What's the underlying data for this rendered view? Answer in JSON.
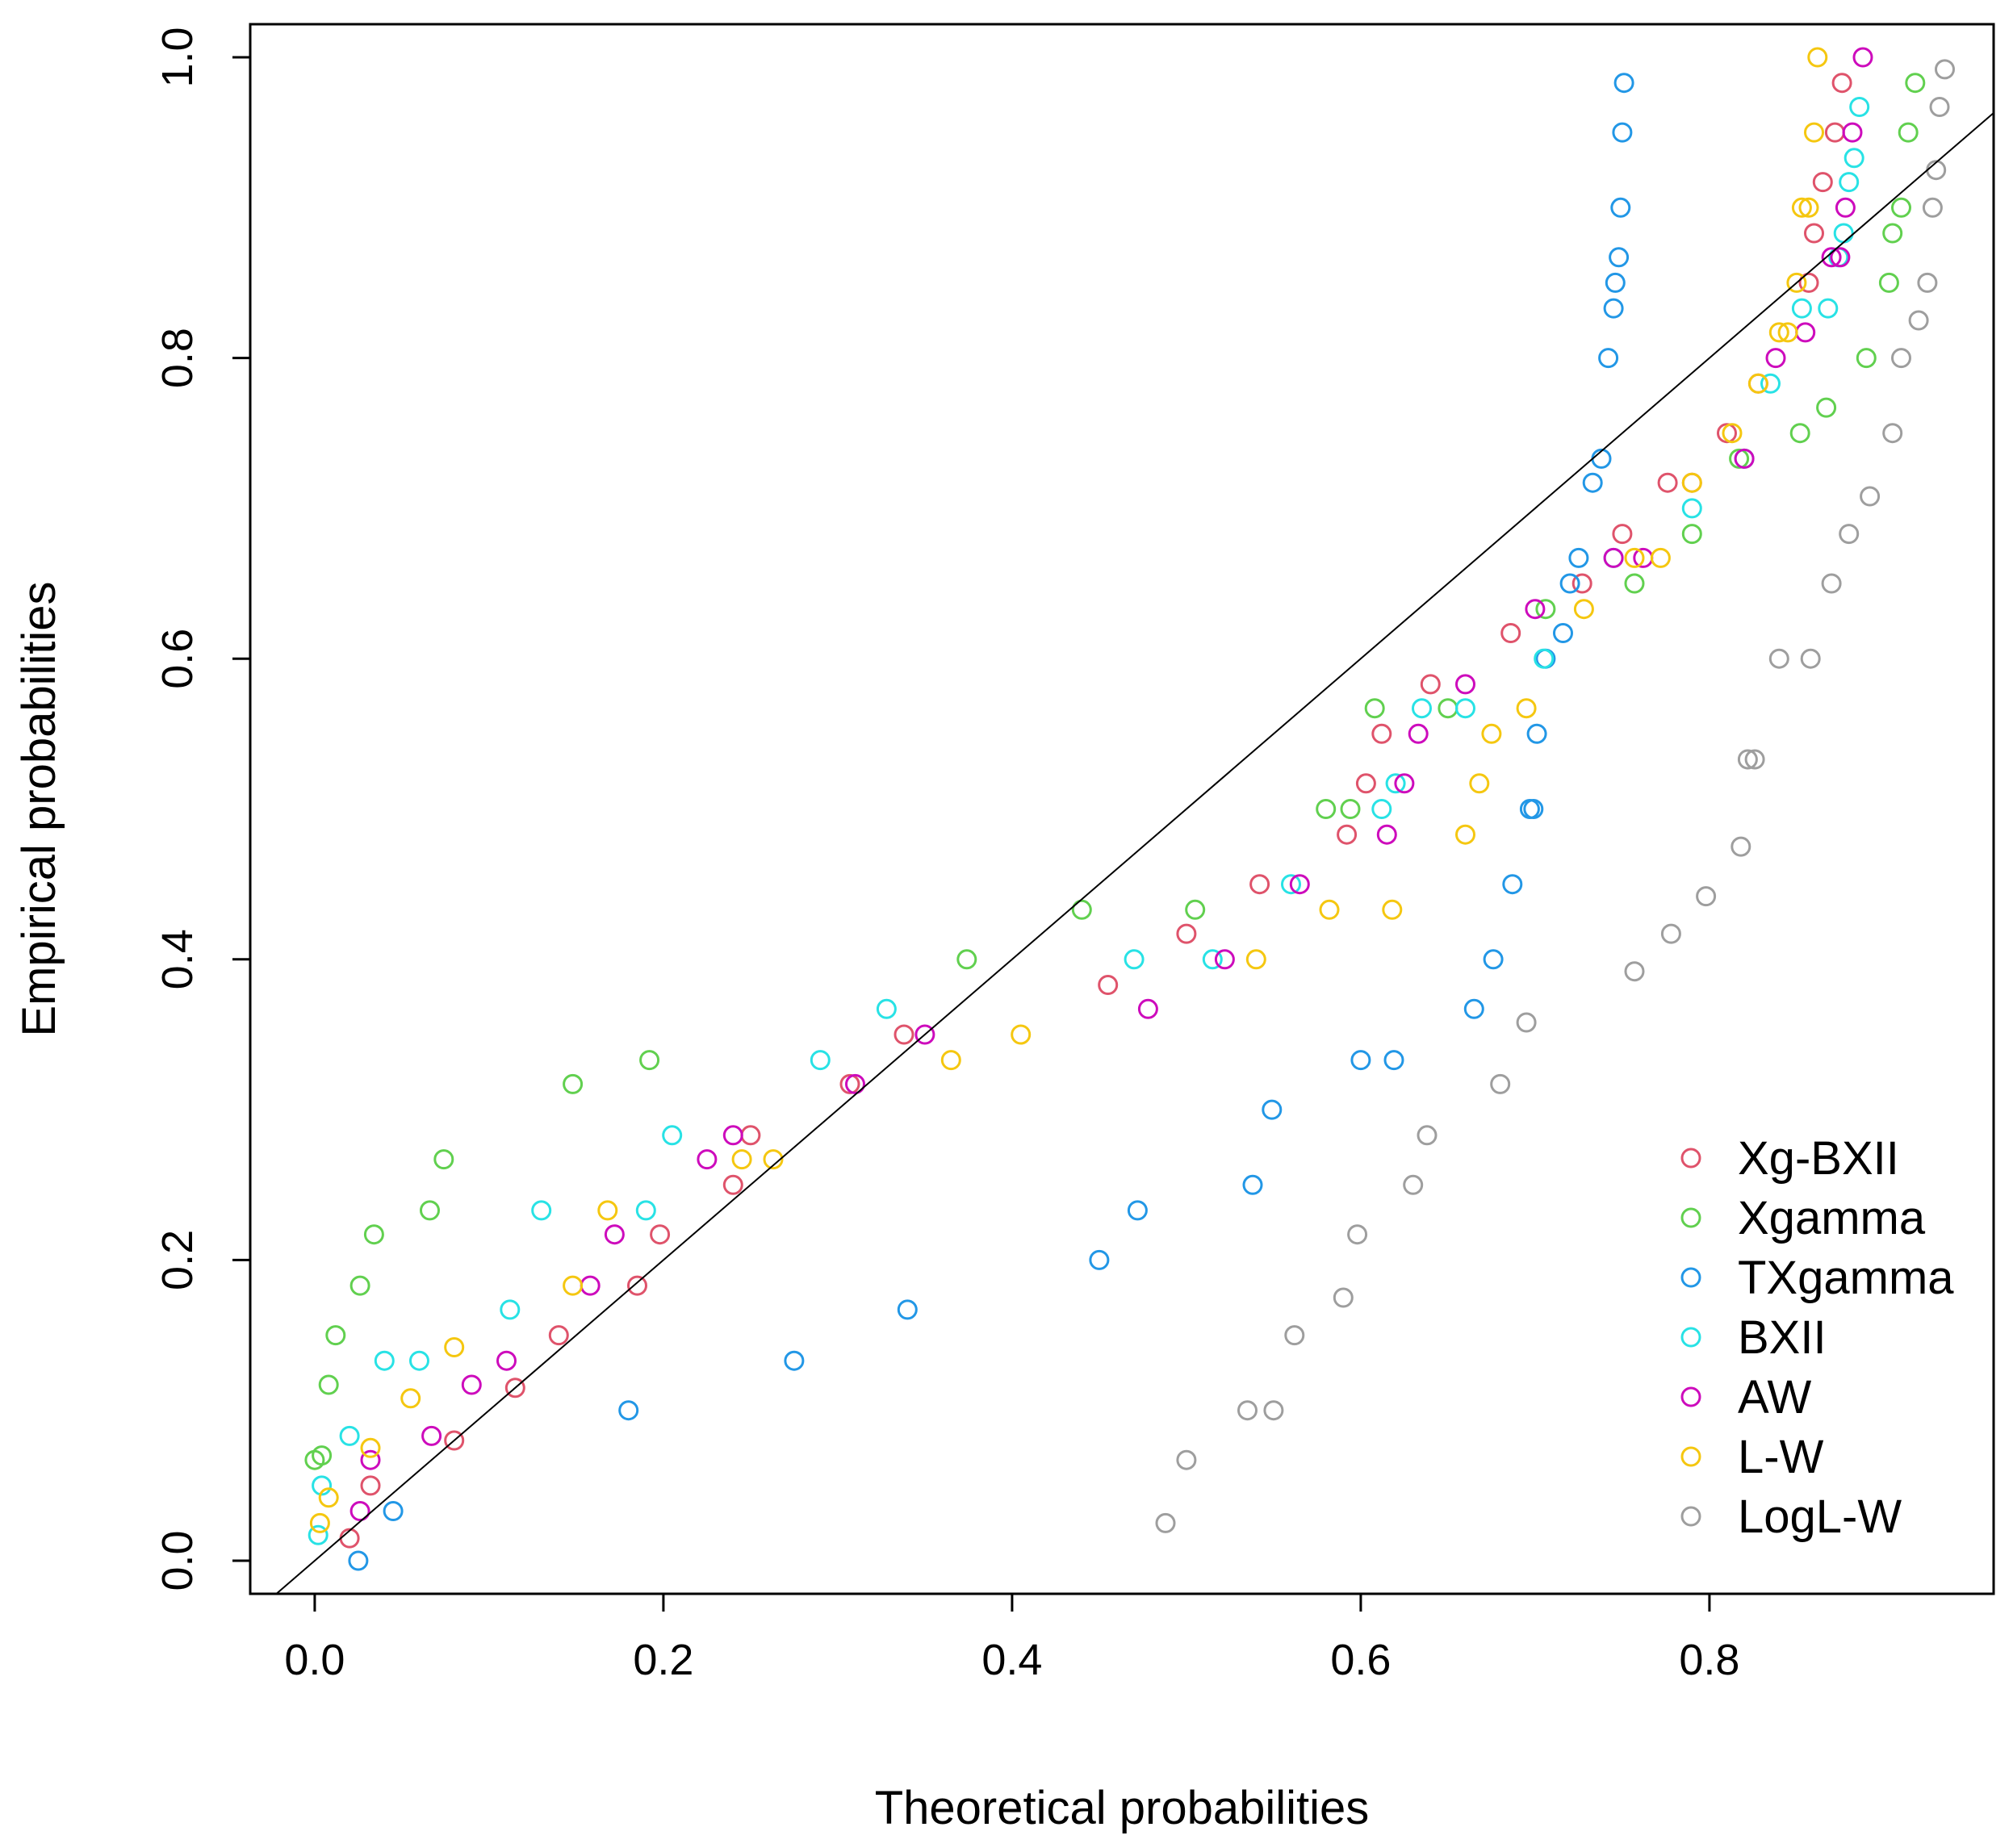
{
  "chart_data": {
    "type": "scatter",
    "title": "",
    "xlabel": "Theoretical probabilities",
    "ylabel": "Empirical probabilities",
    "xlim": [
      -0.037,
      0.963
    ],
    "ylim": [
      -0.022,
      1.022
    ],
    "xticks": [
      0.0,
      0.2,
      0.4,
      0.6,
      0.8
    ],
    "xtick_labels": [
      "0.0",
      "0.2",
      "0.4",
      "0.6",
      "0.8"
    ],
    "yticks": [
      0.0,
      0.2,
      0.4,
      0.6,
      0.8,
      1.0
    ],
    "ytick_labels": [
      "0.0",
      "0.2",
      "0.4",
      "0.6",
      "0.8",
      "1.0"
    ],
    "grid": false,
    "legend_position": "bottom-right",
    "reference_line": {
      "description": "identity line y = x",
      "x": [
        -0.04,
        0.97
      ],
      "y": [
        -0.04,
        0.97
      ],
      "color": "#000000"
    },
    "series": [
      {
        "name": "Xg-BXII",
        "color": "#DF536B",
        "points": [
          [
            0.02,
            0.015
          ],
          [
            0.032,
            0.05
          ],
          [
            0.08,
            0.08
          ],
          [
            0.115,
            0.115
          ],
          [
            0.14,
            0.15
          ],
          [
            0.185,
            0.183
          ],
          [
            0.198,
            0.217
          ],
          [
            0.24,
            0.25
          ],
          [
            0.25,
            0.283
          ],
          [
            0.307,
            0.317
          ],
          [
            0.338,
            0.35
          ],
          [
            0.455,
            0.383
          ],
          [
            0.5,
            0.417
          ],
          [
            0.542,
            0.45
          ],
          [
            0.592,
            0.483
          ],
          [
            0.603,
            0.517
          ],
          [
            0.612,
            0.55
          ],
          [
            0.64,
            0.583
          ],
          [
            0.686,
            0.617
          ],
          [
            0.727,
            0.65
          ],
          [
            0.75,
            0.683
          ],
          [
            0.776,
            0.717
          ],
          [
            0.79,
            0.717
          ],
          [
            0.81,
            0.75
          ],
          [
            0.828,
            0.783
          ],
          [
            0.857,
            0.85
          ],
          [
            0.86,
            0.883
          ],
          [
            0.865,
            0.917
          ],
          [
            0.872,
            0.95
          ],
          [
            0.876,
            0.983
          ]
        ]
      },
      {
        "name": "Xgamma",
        "color": "#61D04F",
        "points": [
          [
            0.0,
            0.067
          ],
          [
            0.004,
            0.07
          ],
          [
            0.008,
            0.117
          ],
          [
            0.012,
            0.15
          ],
          [
            0.026,
            0.183
          ],
          [
            0.034,
            0.217
          ],
          [
            0.066,
            0.233
          ],
          [
            0.074,
            0.267
          ],
          [
            0.148,
            0.317
          ],
          [
            0.192,
            0.333
          ],
          [
            0.374,
            0.4
          ],
          [
            0.44,
            0.433
          ],
          [
            0.505,
            0.433
          ],
          [
            0.58,
            0.5
          ],
          [
            0.594,
            0.5
          ],
          [
            0.608,
            0.567
          ],
          [
            0.65,
            0.567
          ],
          [
            0.706,
            0.633
          ],
          [
            0.757,
            0.65
          ],
          [
            0.79,
            0.683
          ],
          [
            0.817,
            0.733
          ],
          [
            0.852,
            0.75
          ],
          [
            0.867,
            0.767
          ],
          [
            0.89,
            0.8
          ],
          [
            0.903,
            0.85
          ],
          [
            0.905,
            0.883
          ],
          [
            0.91,
            0.9
          ],
          [
            0.914,
            0.95
          ],
          [
            0.918,
            0.983
          ]
        ]
      },
      {
        "name": "TXgamma",
        "color": "#2297E6",
        "points": [
          [
            0.025,
            0.0
          ],
          [
            0.045,
            0.033
          ],
          [
            0.18,
            0.1
          ],
          [
            0.275,
            0.133
          ],
          [
            0.34,
            0.167
          ],
          [
            0.45,
            0.2
          ],
          [
            0.472,
            0.233
          ],
          [
            0.538,
            0.25
          ],
          [
            0.549,
            0.3
          ],
          [
            0.6,
            0.333
          ],
          [
            0.619,
            0.333
          ],
          [
            0.665,
            0.367
          ],
          [
            0.676,
            0.4
          ],
          [
            0.687,
            0.45
          ],
          [
            0.697,
            0.5
          ],
          [
            0.699,
            0.5
          ],
          [
            0.701,
            0.55
          ],
          [
            0.706,
            0.6
          ],
          [
            0.716,
            0.617
          ],
          [
            0.72,
            0.65
          ],
          [
            0.725,
            0.667
          ],
          [
            0.733,
            0.717
          ],
          [
            0.738,
            0.733
          ],
          [
            0.742,
            0.8
          ],
          [
            0.745,
            0.833
          ],
          [
            0.746,
            0.85
          ],
          [
            0.748,
            0.867
          ],
          [
            0.749,
            0.9
          ],
          [
            0.75,
            0.95
          ],
          [
            0.751,
            0.983
          ]
        ]
      },
      {
        "name": "BXII",
        "color": "#28E2E5",
        "points": [
          [
            0.002,
            0.017
          ],
          [
            0.004,
            0.05
          ],
          [
            0.02,
            0.083
          ],
          [
            0.04,
            0.133
          ],
          [
            0.06,
            0.133
          ],
          [
            0.112,
            0.167
          ],
          [
            0.13,
            0.233
          ],
          [
            0.19,
            0.233
          ],
          [
            0.205,
            0.283
          ],
          [
            0.29,
            0.333
          ],
          [
            0.328,
            0.367
          ],
          [
            0.47,
            0.4
          ],
          [
            0.515,
            0.4
          ],
          [
            0.56,
            0.45
          ],
          [
            0.612,
            0.5
          ],
          [
            0.62,
            0.517
          ],
          [
            0.635,
            0.567
          ],
          [
            0.66,
            0.567
          ],
          [
            0.705,
            0.6
          ],
          [
            0.745,
            0.667
          ],
          [
            0.79,
            0.7
          ],
          [
            0.82,
            0.733
          ],
          [
            0.835,
            0.783
          ],
          [
            0.853,
            0.833
          ],
          [
            0.868,
            0.833
          ],
          [
            0.874,
            0.867
          ],
          [
            0.877,
            0.883
          ],
          [
            0.88,
            0.917
          ],
          [
            0.883,
            0.933
          ],
          [
            0.886,
            0.967
          ]
        ]
      },
      {
        "name": "AW",
        "color": "#CD0BBC",
        "points": [
          [
            0.026,
            0.033
          ],
          [
            0.032,
            0.067
          ],
          [
            0.067,
            0.083
          ],
          [
            0.09,
            0.117
          ],
          [
            0.11,
            0.133
          ],
          [
            0.158,
            0.183
          ],
          [
            0.172,
            0.217
          ],
          [
            0.225,
            0.267
          ],
          [
            0.24,
            0.283
          ],
          [
            0.35,
            0.35
          ],
          [
            0.31,
            0.317
          ],
          [
            0.478,
            0.367
          ],
          [
            0.522,
            0.4
          ],
          [
            0.565,
            0.45
          ],
          [
            0.615,
            0.483
          ],
          [
            0.625,
            0.517
          ],
          [
            0.633,
            0.55
          ],
          [
            0.66,
            0.583
          ],
          [
            0.7,
            0.633
          ],
          [
            0.745,
            0.667
          ],
          [
            0.762,
            0.667
          ],
          [
            0.82,
            0.733
          ],
          [
            0.838,
            0.8
          ],
          [
            0.855,
            0.817
          ],
          [
            0.87,
            0.867
          ],
          [
            0.875,
            0.867
          ],
          [
            0.878,
            0.9
          ],
          [
            0.882,
            0.95
          ],
          [
            0.888,
            1.0
          ]
        ]
      },
      {
        "name": "L-W",
        "color": "#F5C710",
        "points": [
          [
            0.003,
            0.025
          ],
          [
            0.008,
            0.042
          ],
          [
            0.032,
            0.075
          ],
          [
            0.055,
            0.108
          ],
          [
            0.08,
            0.142
          ],
          [
            0.148,
            0.183
          ],
          [
            0.168,
            0.233
          ],
          [
            0.245,
            0.267
          ],
          [
            0.263,
            0.267
          ],
          [
            0.365,
            0.333
          ],
          [
            0.405,
            0.35
          ],
          [
            0.54,
            0.4
          ],
          [
            0.582,
            0.433
          ],
          [
            0.618,
            0.433
          ],
          [
            0.66,
            0.483
          ],
          [
            0.668,
            0.517
          ],
          [
            0.675,
            0.55
          ],
          [
            0.695,
            0.567
          ],
          [
            0.728,
            0.633
          ],
          [
            0.757,
            0.667
          ],
          [
            0.772,
            0.667
          ],
          [
            0.79,
            0.717
          ],
          [
            0.813,
            0.75
          ],
          [
            0.828,
            0.783
          ],
          [
            0.84,
            0.817
          ],
          [
            0.845,
            0.817
          ],
          [
            0.85,
            0.85
          ],
          [
            0.853,
            0.9
          ],
          [
            0.857,
            0.9
          ],
          [
            0.86,
            0.95
          ],
          [
            0.862,
            1.0
          ]
        ]
      },
      {
        "name": "LogL-W",
        "color": "#9E9E9E",
        "points": [
          [
            0.488,
            0.025
          ],
          [
            0.5,
            0.067
          ],
          [
            0.535,
            0.1
          ],
          [
            0.55,
            0.1
          ],
          [
            0.562,
            0.15
          ],
          [
            0.59,
            0.175
          ],
          [
            0.598,
            0.217
          ],
          [
            0.63,
            0.25
          ],
          [
            0.638,
            0.283
          ],
          [
            0.68,
            0.317
          ],
          [
            0.695,
            0.358
          ],
          [
            0.757,
            0.392
          ],
          [
            0.778,
            0.417
          ],
          [
            0.798,
            0.442
          ],
          [
            0.818,
            0.475
          ],
          [
            0.822,
            0.533
          ],
          [
            0.826,
            0.533
          ],
          [
            0.84,
            0.6
          ],
          [
            0.858,
            0.6
          ],
          [
            0.87,
            0.65
          ],
          [
            0.88,
            0.683
          ],
          [
            0.892,
            0.708
          ],
          [
            0.905,
            0.75
          ],
          [
            0.91,
            0.8
          ],
          [
            0.92,
            0.825
          ],
          [
            0.925,
            0.85
          ],
          [
            0.928,
            0.9
          ],
          [
            0.93,
            0.925
          ],
          [
            0.932,
            0.967
          ],
          [
            0.935,
            0.992
          ]
        ]
      }
    ]
  }
}
